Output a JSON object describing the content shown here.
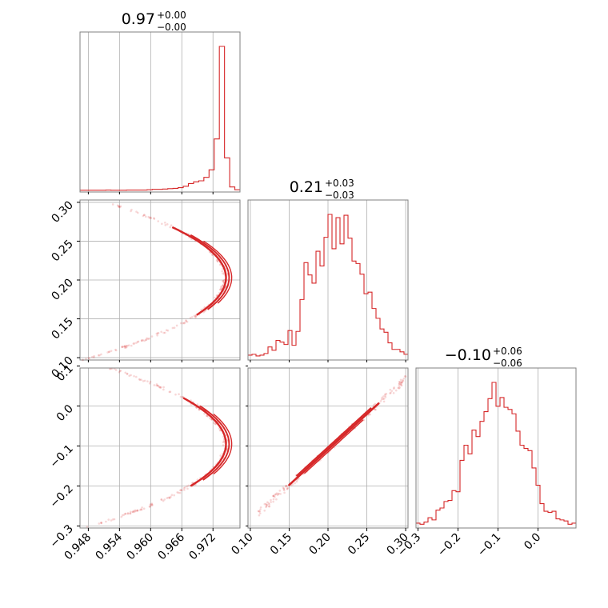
{
  "chart_data": {
    "type": "corner",
    "color": "#d62728",
    "grid": true,
    "parameters": [
      {
        "title": {
          "median": "0.97",
          "plus": "+0.00",
          "minus": "−0.00"
        },
        "range": [
          0.9464,
          0.9772
        ],
        "ticks": [
          0.948,
          0.954,
          0.96,
          0.966,
          0.972
        ],
        "tick_labels": [
          "0.948",
          "0.954",
          "0.960",
          "0.966",
          "0.972"
        ],
        "hist": [
          0.5,
          0.5,
          0.5,
          0.5,
          0.5,
          1,
          0.5,
          0.5,
          0.5,
          1,
          1,
          1,
          1,
          2,
          3,
          3,
          4,
          5,
          6,
          8,
          12,
          20,
          25,
          28,
          38,
          60,
          150,
          420,
          95,
          10,
          2
        ]
      },
      {
        "title": {
          "median": "0.21",
          "plus": "+0.03",
          "minus": "−0.03"
        },
        "range": [
          0.097,
          0.303
        ],
        "ticks": [
          0.1,
          0.15,
          0.2,
          0.25,
          0.3
        ],
        "tick_labels": [
          "0.10",
          "0.15",
          "0.20",
          "0.25",
          "0.30"
        ],
        "hist": [
          4,
          5,
          3,
          4,
          6,
          14,
          10,
          22,
          20,
          17,
          34,
          16,
          33,
          72,
          117,
          102,
          92,
          131,
          113,
          148,
          176,
          134,
          172,
          140,
          175,
          147,
          119,
          116,
          103,
          79,
          81,
          61,
          49,
          36,
          32,
          19,
          11,
          11,
          8,
          5
        ]
      },
      {
        "title": {
          "median": "−0.10",
          "plus": "+0.06",
          "minus": "−0.06"
        },
        "range": [
          -0.305,
          0.095
        ],
        "ticks": [
          -0.3,
          -0.2,
          -0.1,
          0.0
        ],
        "tick_labels": [
          "−0.3",
          "−0.2",
          "−0.1",
          "0.0"
        ],
        "hist": [
          3,
          2,
          4,
          8,
          6,
          15,
          17,
          23,
          24,
          33,
          32,
          61,
          75,
          67,
          89,
          83,
          97,
          106,
          118,
          133,
          111,
          119,
          110,
          108,
          104,
          88,
          75,
          72,
          70,
          54,
          38,
          21,
          14,
          13,
          14,
          7,
          6,
          5,
          2,
          3
        ]
      }
    ],
    "y_axes": {
      "row1": {
        "ticks": [
          0.1,
          0.15,
          0.2,
          0.25,
          0.3
        ],
        "tick_labels": [
          "0.10",
          "0.15",
          "0.20",
          "0.25",
          "0.30"
        ]
      },
      "row2": {
        "ticks": [
          -0.3,
          -0.2,
          -0.1,
          0.0,
          0.1
        ],
        "tick_labels": [
          "−0.3",
          "−0.2",
          "−0.1",
          "0.0",
          "0.1"
        ]
      }
    }
  }
}
